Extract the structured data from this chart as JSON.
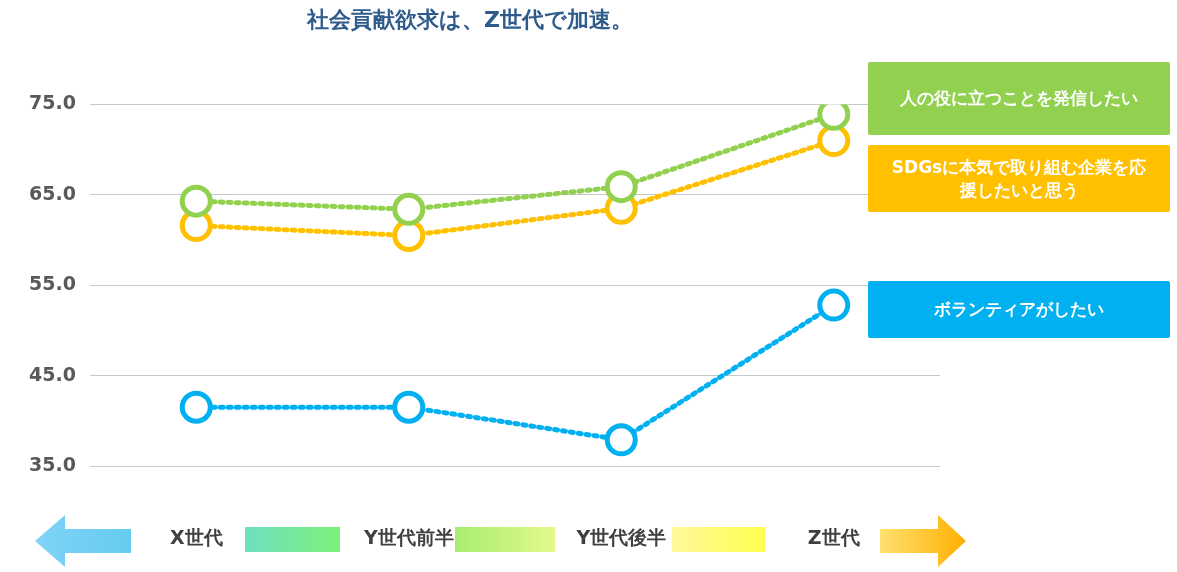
{
  "chart_data": {
    "type": "line",
    "title": "社会貢献欲求は、Z世代で加速。",
    "categories": [
      "X世代",
      "Y世代前半",
      "Y世代後半",
      "Z世代"
    ],
    "series": [
      {
        "name": "人の役に立つことを発信したい",
        "color": "#92d050",
        "values": [
          64.3,
          63.4,
          65.9,
          73.9
        ]
      },
      {
        "name": "SDGsに本気で取り組む企業を応援したいと思う",
        "color": "#ffc000",
        "values": [
          61.6,
          60.5,
          63.5,
          71.0
        ]
      },
      {
        "name": "ボランティアがしたい",
        "color": "#00b0f0",
        "values": [
          41.5,
          41.5,
          37.9,
          52.8
        ]
      }
    ],
    "ylim": [
      35,
      75
    ],
    "yticks": [
      {
        "value": 35,
        "label": "35.0"
      },
      {
        "value": 45,
        "label": "45.0"
      },
      {
        "value": 55,
        "label": "55.0"
      },
      {
        "value": 65,
        "label": "65.0"
      },
      {
        "value": 75,
        "label": "75.0"
      }
    ],
    "grid": "y",
    "legend": "right",
    "marker": "circle",
    "line_style": "dotted"
  }
}
